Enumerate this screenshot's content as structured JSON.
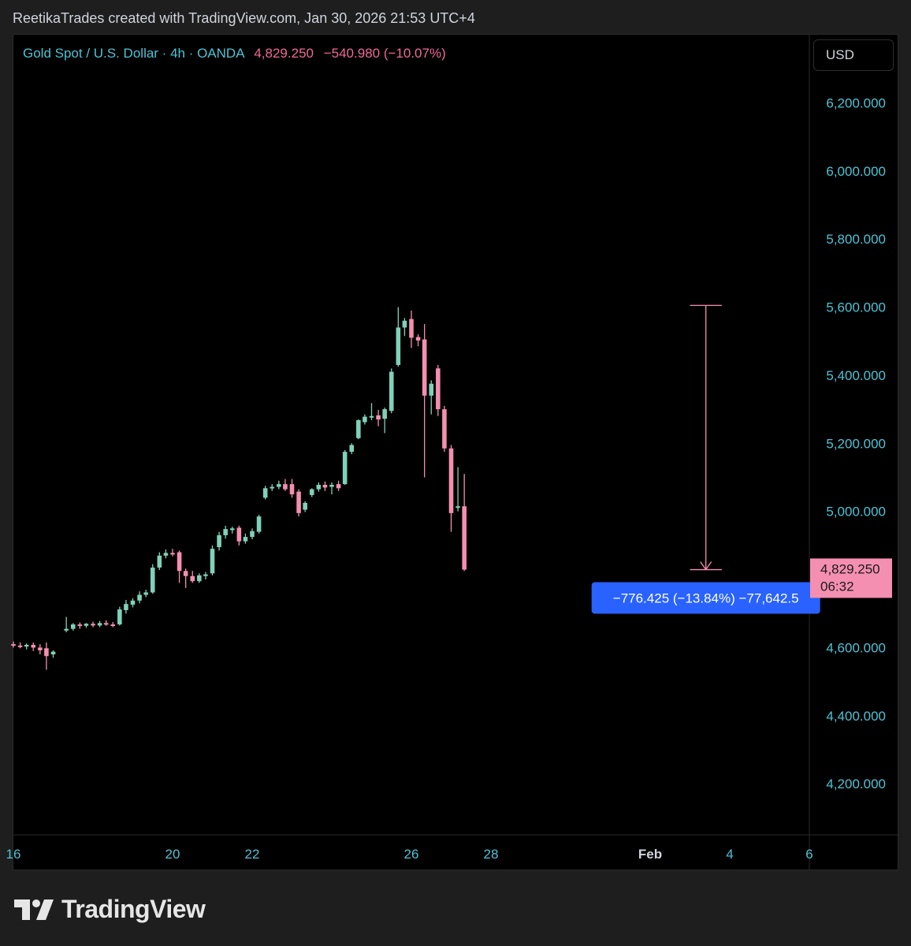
{
  "header": {
    "attribution": "ReetikaTrades created with TradingView.com, Jan 30, 2026 21:53 UTC+4"
  },
  "legend": {
    "symbol": "Gold Spot / U.S. Dollar · 4h · OANDA",
    "price": "4,829.250",
    "change": "−540.980 (−10.07%)"
  },
  "currency_button": "USD",
  "last_price_tag": {
    "price": "4,829.250",
    "countdown": "06:32"
  },
  "measure_label": "−776.425 (−13.84%) −77,642.5",
  "footer": {
    "brand": "TradingView"
  },
  "colors": {
    "up": "#7fd1b9",
    "down": "#f48fb1",
    "axis_text": "#4dc3d6",
    "measure_bg": "#2962ff"
  },
  "chart_data": {
    "type": "candlestick",
    "title": "Gold Spot / U.S. Dollar · 4h · OANDA",
    "y_tick_labels": [
      "6,200.000",
      "6,000.000",
      "5,800.000",
      "5,600.000",
      "5,400.000",
      "5,200.000",
      "5,000.000",
      "4,600.000",
      "4,400.000",
      "4,200.000"
    ],
    "y_tick_values": [
      6200,
      6000,
      5800,
      5600,
      5400,
      5200,
      5000,
      4600,
      4400,
      4200
    ],
    "x_tick_labels": [
      "16",
      "20",
      "22",
      "26",
      "28",
      "Feb",
      "4",
      "6"
    ],
    "x_tick_days": [
      16,
      20,
      22,
      26,
      28,
      32,
      34,
      36
    ],
    "x_day_range": [
      16,
      36
    ],
    "ylim": [
      4050,
      6400
    ],
    "last_price": 4829.25,
    "measure": {
      "from": 5605,
      "to": 4829,
      "day_range": [
        33,
        33.8
      ]
    },
    "candles": [
      {
        "d": 16.0,
        "o": 4610,
        "h": 4618,
        "l": 4600,
        "c": 4606
      },
      {
        "d": 16.17,
        "o": 4606,
        "h": 4615,
        "l": 4598,
        "c": 4603
      },
      {
        "d": 16.33,
        "o": 4603,
        "h": 4612,
        "l": 4595,
        "c": 4608
      },
      {
        "d": 16.5,
        "o": 4608,
        "h": 4615,
        "l": 4590,
        "c": 4600
      },
      {
        "d": 16.67,
        "o": 4600,
        "h": 4610,
        "l": 4580,
        "c": 4592
      },
      {
        "d": 16.83,
        "o": 4598,
        "h": 4615,
        "l": 4535,
        "c": 4575
      },
      {
        "d": 17.0,
        "o": 4580,
        "h": 4592,
        "l": 4570,
        "c": 4588
      },
      {
        "d": 17.33,
        "o": 4650,
        "h": 4690,
        "l": 4645,
        "c": 4655
      },
      {
        "d": 17.5,
        "o": 4655,
        "h": 4672,
        "l": 4650,
        "c": 4668
      },
      {
        "d": 17.67,
        "o": 4668,
        "h": 4674,
        "l": 4655,
        "c": 4664
      },
      {
        "d": 17.83,
        "o": 4664,
        "h": 4672,
        "l": 4658,
        "c": 4670
      },
      {
        "d": 18.0,
        "o": 4670,
        "h": 4676,
        "l": 4660,
        "c": 4665
      },
      {
        "d": 18.17,
        "o": 4665,
        "h": 4678,
        "l": 4660,
        "c": 4672
      },
      {
        "d": 18.33,
        "o": 4672,
        "h": 4680,
        "l": 4664,
        "c": 4668
      },
      {
        "d": 18.5,
        "o": 4668,
        "h": 4675,
        "l": 4660,
        "c": 4666
      },
      {
        "d": 18.67,
        "o": 4668,
        "h": 4720,
        "l": 4665,
        "c": 4712
      },
      {
        "d": 18.83,
        "o": 4710,
        "h": 4740,
        "l": 4700,
        "c": 4728
      },
      {
        "d": 19.0,
        "o": 4726,
        "h": 4745,
        "l": 4718,
        "c": 4738
      },
      {
        "d": 19.17,
        "o": 4738,
        "h": 4765,
        "l": 4730,
        "c": 4755
      },
      {
        "d": 19.33,
        "o": 4755,
        "h": 4770,
        "l": 4748,
        "c": 4762
      },
      {
        "d": 19.5,
        "o": 4762,
        "h": 4845,
        "l": 4758,
        "c": 4835
      },
      {
        "d": 19.67,
        "o": 4835,
        "h": 4880,
        "l": 4828,
        "c": 4870
      },
      {
        "d": 19.83,
        "o": 4870,
        "h": 4888,
        "l": 4862,
        "c": 4878
      },
      {
        "d": 20.0,
        "o": 4878,
        "h": 4890,
        "l": 4868,
        "c": 4875
      },
      {
        "d": 20.17,
        "o": 4880,
        "h": 4885,
        "l": 4790,
        "c": 4825
      },
      {
        "d": 20.33,
        "o": 4825,
        "h": 4832,
        "l": 4775,
        "c": 4810
      },
      {
        "d": 20.5,
        "o": 4810,
        "h": 4825,
        "l": 4790,
        "c": 4795
      },
      {
        "d": 20.67,
        "o": 4795,
        "h": 4818,
        "l": 4790,
        "c": 4812
      },
      {
        "d": 20.83,
        "o": 4810,
        "h": 4822,
        "l": 4800,
        "c": 4815
      },
      {
        "d": 21.0,
        "o": 4818,
        "h": 4900,
        "l": 4812,
        "c": 4890
      },
      {
        "d": 21.17,
        "o": 4895,
        "h": 4940,
        "l": 4885,
        "c": 4930
      },
      {
        "d": 21.33,
        "o": 4930,
        "h": 4958,
        "l": 4920,
        "c": 4948
      },
      {
        "d": 21.5,
        "o": 4945,
        "h": 4955,
        "l": 4935,
        "c": 4950
      },
      {
        "d": 21.67,
        "o": 4952,
        "h": 4958,
        "l": 4900,
        "c": 4912
      },
      {
        "d": 21.83,
        "o": 4912,
        "h": 4935,
        "l": 4905,
        "c": 4925
      },
      {
        "d": 22.0,
        "o": 4925,
        "h": 4950,
        "l": 4918,
        "c": 4942
      },
      {
        "d": 22.17,
        "o": 4940,
        "h": 4990,
        "l": 4935,
        "c": 4985
      },
      {
        "d": 22.33,
        "o": 5040,
        "h": 5075,
        "l": 5035,
        "c": 5068
      },
      {
        "d": 22.5,
        "o": 5068,
        "h": 5080,
        "l": 5060,
        "c": 5072
      },
      {
        "d": 22.67,
        "o": 5072,
        "h": 5090,
        "l": 5065,
        "c": 5080
      },
      {
        "d": 22.83,
        "o": 5080,
        "h": 5095,
        "l": 5060,
        "c": 5065
      },
      {
        "d": 23.0,
        "o": 5080,
        "h": 5095,
        "l": 5040,
        "c": 5050
      },
      {
        "d": 23.17,
        "o": 5058,
        "h": 5065,
        "l": 4985,
        "c": 4995
      },
      {
        "d": 23.33,
        "o": 5005,
        "h": 5030,
        "l": 4998,
        "c": 5025
      },
      {
        "d": 23.5,
        "o": 5048,
        "h": 5068,
        "l": 5042,
        "c": 5065
      },
      {
        "d": 23.67,
        "o": 5065,
        "h": 5085,
        "l": 5058,
        "c": 5078
      },
      {
        "d": 23.83,
        "o": 5078,
        "h": 5088,
        "l": 5060,
        "c": 5070
      },
      {
        "d": 24.0,
        "o": 5072,
        "h": 5085,
        "l": 5050,
        "c": 5078
      },
      {
        "d": 24.17,
        "o": 5080,
        "h": 5090,
        "l": 5060,
        "c": 5068
      },
      {
        "d": 24.33,
        "o": 5080,
        "h": 5180,
        "l": 5078,
        "c": 5175
      },
      {
        "d": 24.5,
        "o": 5175,
        "h": 5200,
        "l": 5168,
        "c": 5195
      },
      {
        "d": 24.67,
        "o": 5215,
        "h": 5270,
        "l": 5212,
        "c": 5268
      },
      {
        "d": 24.83,
        "o": 5262,
        "h": 5285,
        "l": 5255,
        "c": 5278
      },
      {
        "d": 25.0,
        "o": 5278,
        "h": 5318,
        "l": 5268,
        "c": 5280
      },
      {
        "d": 25.17,
        "o": 5282,
        "h": 5298,
        "l": 5250,
        "c": 5270
      },
      {
        "d": 25.33,
        "o": 5272,
        "h": 5305,
        "l": 5230,
        "c": 5300
      },
      {
        "d": 25.5,
        "o": 5295,
        "h": 5420,
        "l": 5288,
        "c": 5410
      },
      {
        "d": 25.67,
        "o": 5430,
        "h": 5600,
        "l": 5425,
        "c": 5540
      },
      {
        "d": 25.83,
        "o": 5540,
        "h": 5568,
        "l": 5515,
        "c": 5560
      },
      {
        "d": 26.0,
        "o": 5565,
        "h": 5590,
        "l": 5480,
        "c": 5510
      },
      {
        "d": 26.17,
        "o": 5512,
        "h": 5520,
        "l": 5485,
        "c": 5502
      },
      {
        "d": 26.33,
        "o": 5505,
        "h": 5550,
        "l": 5100,
        "c": 5340
      },
      {
        "d": 26.5,
        "o": 5340,
        "h": 5385,
        "l": 5285,
        "c": 5375
      },
      {
        "d": 26.67,
        "o": 5420,
        "h": 5430,
        "l": 5280,
        "c": 5300
      },
      {
        "d": 26.83,
        "o": 5300,
        "h": 5310,
        "l": 5175,
        "c": 5185
      },
      {
        "d": 27.0,
        "o": 5185,
        "h": 5195,
        "l": 4940,
        "c": 4995
      },
      {
        "d": 27.17,
        "o": 5012,
        "h": 5130,
        "l": 5000,
        "c": 5015
      },
      {
        "d": 27.33,
        "o": 5015,
        "h": 5110,
        "l": 4825,
        "c": 4829
      }
    ]
  }
}
